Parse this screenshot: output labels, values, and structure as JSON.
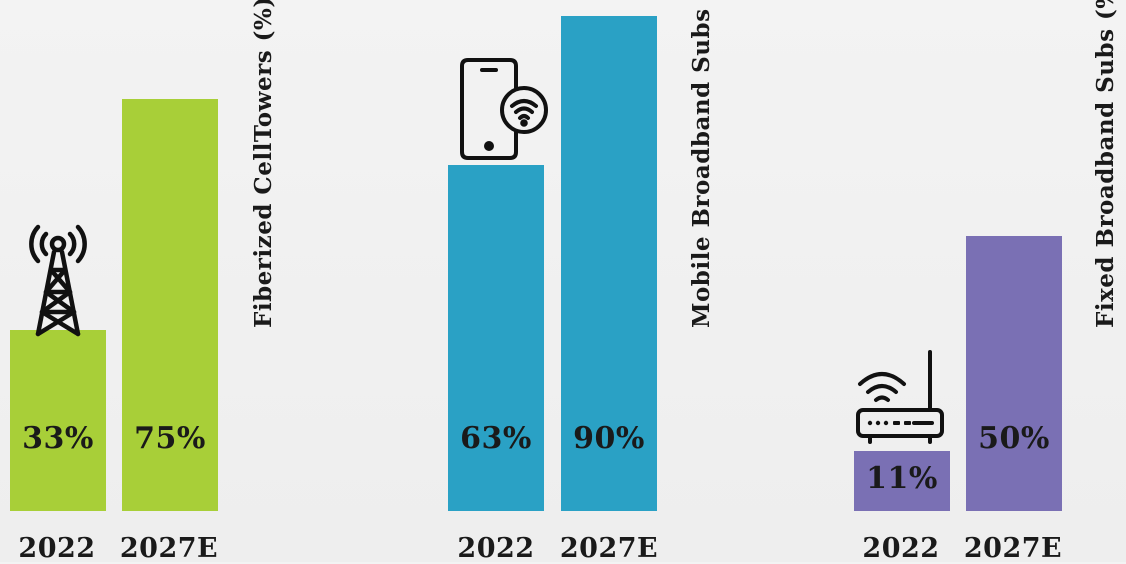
{
  "chart_data": [
    {
      "type": "bar",
      "title": "Fiberized CellTowers (%)",
      "categories": [
        "2022",
        "2027E"
      ],
      "values": [
        33,
        75
      ],
      "value_labels": [
        "33%",
        "75%"
      ],
      "ylim": [
        0,
        100
      ],
      "color": "#a8cf38",
      "icon": "cell-tower-icon"
    },
    {
      "type": "bar",
      "title": "Mobile Broadband Subs (%)",
      "categories": [
        "2022",
        "2027E"
      ],
      "values": [
        63,
        90
      ],
      "value_labels": [
        "63%",
        "90%"
      ],
      "ylim": [
        0,
        100
      ],
      "color": "#2aa1c5",
      "icon": "smartphone-wifi-icon"
    },
    {
      "type": "bar",
      "title": "Fixed Broadband Subs (%)",
      "categories": [
        "2022",
        "2027E"
      ],
      "values": [
        11,
        50
      ],
      "value_labels": [
        "11%",
        "50%"
      ],
      "ylim": [
        0,
        100
      ],
      "color": "#7a70b4",
      "icon": "wifi-router-icon"
    }
  ]
}
